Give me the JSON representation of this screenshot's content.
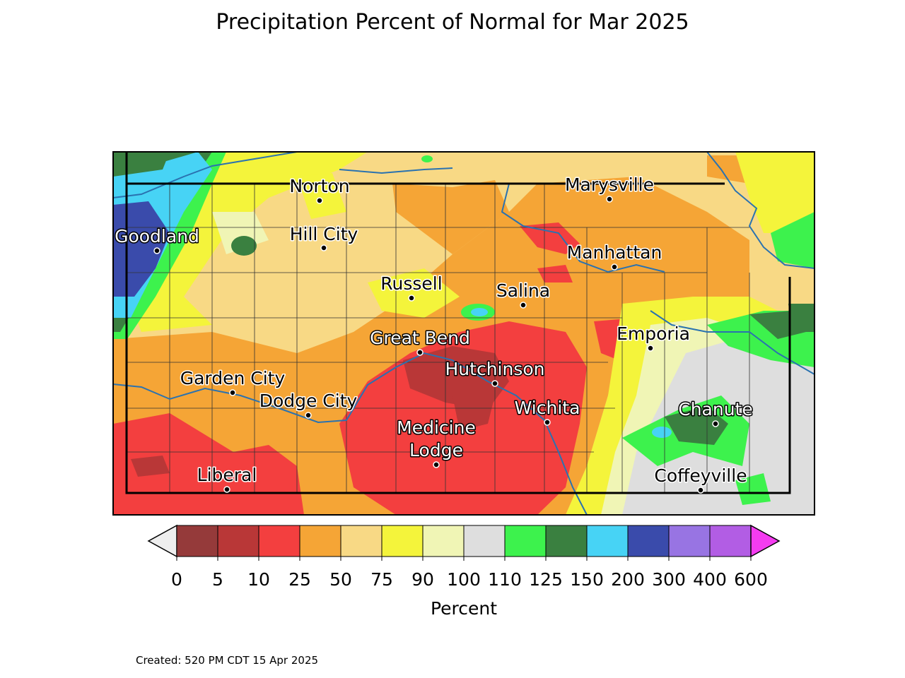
{
  "title": "Precipitation Percent of Normal for Mar 2025",
  "created": "Created: 520 PM CDT 15 Apr 2025",
  "colorbar": {
    "label": "Percent",
    "ticks": [
      "0",
      "5",
      "10",
      "25",
      "50",
      "75",
      "90",
      "100",
      "110",
      "125",
      "150",
      "200",
      "300",
      "400",
      "600"
    ],
    "under_color": "#eeeeee",
    "over_color": "#f43cf0",
    "colors": [
      "#953a3a",
      "#b93737",
      "#f33f3f",
      "#f5a536",
      "#f8d985",
      "#f4f43b",
      "#f0f5b5",
      "#dedede",
      "#3df24d",
      "#3a8040",
      "#47d3f5",
      "#3a4bab",
      "#9874e3",
      "#b25de4"
    ]
  },
  "cities": [
    {
      "name": "Norton",
      "color": "#000000"
    },
    {
      "name": "Marysville",
      "color": "#000000"
    },
    {
      "name": "Goodland",
      "color": "#ffffff"
    },
    {
      "name": "Hill City",
      "color": "#000000"
    },
    {
      "name": "Manhattan",
      "color": "#000000"
    },
    {
      "name": "Russell",
      "color": "#000000"
    },
    {
      "name": "Salina",
      "color": "#000000"
    },
    {
      "name": "Emporia",
      "color": "#000000"
    },
    {
      "name": "Great Bend",
      "color": "#ffffff"
    },
    {
      "name": "Hutchinson",
      "color": "#ffffff"
    },
    {
      "name": "Garden City",
      "color": "#000000"
    },
    {
      "name": "Dodge City",
      "color": "#000000"
    },
    {
      "name": "Wichita",
      "color": "#ffffff"
    },
    {
      "name": "Chanute",
      "color": "#ffffff"
    },
    {
      "name": "Medicine Lodge",
      "color": "#ffffff"
    },
    {
      "name": "Coffeyville",
      "color": "#000000"
    },
    {
      "name": "Liberal",
      "color": "#000000"
    }
  ]
}
